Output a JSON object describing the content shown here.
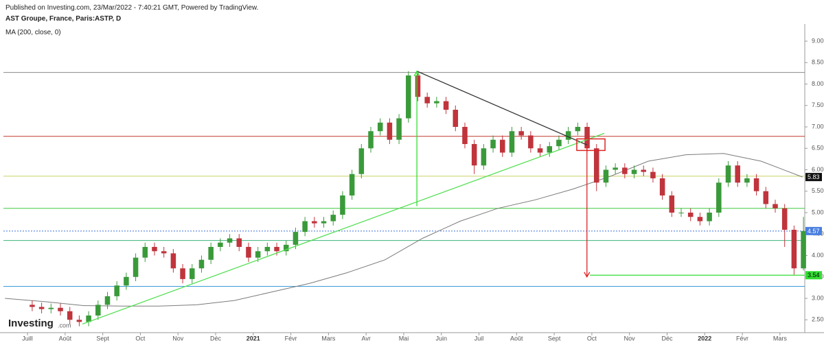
{
  "chart_data": {
    "type": "candlestick",
    "published": "Published on Investing.com, 23/Mar/2022 - 7:40:21 GMT, Powered by TradingView.",
    "title": "AST Groupe, France, Paris:ASTP, D",
    "indicator": "MA (200, close, 0)",
    "logo": "Investing",
    "logo_suffix": ".com",
    "xlim": [
      -0.64,
      20.66
    ],
    "ylim": [
      2.2,
      9.4
    ],
    "xticks": [
      {
        "value": 0,
        "label": "Juill"
      },
      {
        "value": 1,
        "label": "Août"
      },
      {
        "value": 2,
        "label": "Sept"
      },
      {
        "value": 3,
        "label": "Oct"
      },
      {
        "value": 4,
        "label": "Nov"
      },
      {
        "value": 5,
        "label": "Déc"
      },
      {
        "value": 6,
        "label": "2021"
      },
      {
        "value": 7,
        "label": "Févr"
      },
      {
        "value": 8,
        "label": "Mars"
      },
      {
        "value": 9,
        "label": "Avr"
      },
      {
        "value": 10,
        "label": "Mai"
      },
      {
        "value": 11,
        "label": "Juin"
      },
      {
        "value": 12,
        "label": "Juil"
      },
      {
        "value": 13,
        "label": "Août"
      },
      {
        "value": 14,
        "label": "Sept"
      },
      {
        "value": 15,
        "label": "Oct"
      },
      {
        "value": 16,
        "label": "Nov"
      },
      {
        "value": 17,
        "label": "Déc"
      },
      {
        "value": 18,
        "label": "2022"
      },
      {
        "value": 19,
        "label": "Févr"
      },
      {
        "value": 20,
        "label": "Mars"
      }
    ],
    "yticks": [
      {
        "value": 9,
        "label": "9.00"
      },
      {
        "value": 8.5,
        "label": "8.50"
      },
      {
        "value": 8,
        "label": "8.00"
      },
      {
        "value": 7.5,
        "label": "7.50"
      },
      {
        "value": 7,
        "label": "7.00"
      },
      {
        "value": 6.5,
        "label": "6.50"
      },
      {
        "value": 6,
        "label": "6.00"
      },
      {
        "value": 5.5,
        "label": "5.50"
      },
      {
        "value": 5,
        "label": "5.00"
      },
      {
        "value": 4.5,
        "label": "4.50"
      },
      {
        "value": 4,
        "label": "4.00"
      },
      {
        "value": 3.5,
        "label": "3.50"
      },
      {
        "value": 3,
        "label": "3.00"
      },
      {
        "value": 2.5,
        "label": "2.50"
      }
    ],
    "up_color": "#3a9a3a",
    "down_color": "#c0343c",
    "candles": {
      "x": [
        0.125,
        0.375,
        0.625,
        0.875,
        1.125,
        1.375,
        1.625,
        1.875,
        2.125,
        2.375,
        2.625,
        2.875,
        3.125,
        3.375,
        3.625,
        3.875,
        4.125,
        4.375,
        4.625,
        4.875,
        5.125,
        5.375,
        5.625,
        5.875,
        6.125,
        6.375,
        6.625,
        6.875,
        7.125,
        7.375,
        7.625,
        7.875,
        8.125,
        8.375,
        8.625,
        8.875,
        9.125,
        9.375,
        9.625,
        9.875,
        10.125,
        10.375,
        10.625,
        10.875,
        11.125,
        11.375,
        11.625,
        11.875,
        12.125,
        12.375,
        12.625,
        12.875,
        13.125,
        13.375,
        13.625,
        13.875,
        14.125,
        14.375,
        14.625,
        14.875,
        15.125,
        15.375,
        15.625,
        15.875,
        16.125,
        16.375,
        16.625,
        16.875,
        17.125,
        17.375,
        17.625,
        17.875,
        18.125,
        18.375,
        18.625,
        18.875,
        19.125,
        19.375,
        19.625,
        19.875,
        20.125,
        20.375,
        20.625
      ],
      "open": [
        2.85,
        2.8,
        2.75,
        2.78,
        2.7,
        2.5,
        2.45,
        2.6,
        2.85,
        3.05,
        3.3,
        3.5,
        3.95,
        4.2,
        4.1,
        4.05,
        3.7,
        3.45,
        3.7,
        3.9,
        4.2,
        4.3,
        4.4,
        4.2,
        3.95,
        4.1,
        4.2,
        4.1,
        4.25,
        4.55,
        4.8,
        4.75,
        4.8,
        4.95,
        5.4,
        5.9,
        6.5,
        6.9,
        7.1,
        6.7,
        7.2,
        8.2,
        7.7,
        7.55,
        7.6,
        7.4,
        7.0,
        6.6,
        6.1,
        6.5,
        6.7,
        6.4,
        6.9,
        6.8,
        6.5,
        6.4,
        6.55,
        6.7,
        6.9,
        7.0,
        6.5,
        5.7,
        6.0,
        6.05,
        5.9,
        6.0,
        5.95,
        5.8,
        5.4,
        5.0,
        5.0,
        4.9,
        4.8,
        5.0,
        5.7,
        6.1,
        5.7,
        5.8,
        5.5,
        5.2,
        5.1,
        4.6,
        3.7
      ],
      "high": [
        2.95,
        2.9,
        2.88,
        2.88,
        2.8,
        2.6,
        2.7,
        2.95,
        3.15,
        3.4,
        3.6,
        4.05,
        4.3,
        4.3,
        4.2,
        4.15,
        3.8,
        3.8,
        4.0,
        4.3,
        4.4,
        4.5,
        4.5,
        4.3,
        4.2,
        4.3,
        4.3,
        4.35,
        4.65,
        4.9,
        4.9,
        4.9,
        5.05,
        5.5,
        6.0,
        6.6,
        7.0,
        7.2,
        7.2,
        7.3,
        8.3,
        8.25,
        7.8,
        7.7,
        7.7,
        7.5,
        7.1,
        6.7,
        6.6,
        6.8,
        6.8,
        7.0,
        7.0,
        6.9,
        6.6,
        6.65,
        6.8,
        7.0,
        7.1,
        7.1,
        6.6,
        6.1,
        6.15,
        6.15,
        6.1,
        6.1,
        6.05,
        5.9,
        5.5,
        5.1,
        5.1,
        5.0,
        5.1,
        5.8,
        6.2,
        6.2,
        5.9,
        5.9,
        5.6,
        5.3,
        5.2,
        4.7,
        4.9
      ],
      "low": [
        2.7,
        2.65,
        2.65,
        2.6,
        2.4,
        2.35,
        2.35,
        2.5,
        2.75,
        2.95,
        3.2,
        3.4,
        3.85,
        4.0,
        3.95,
        3.6,
        3.35,
        3.35,
        3.6,
        3.8,
        4.1,
        4.2,
        4.1,
        3.85,
        3.85,
        4.0,
        4.0,
        4.0,
        4.15,
        4.45,
        4.65,
        4.65,
        4.7,
        4.85,
        5.3,
        5.8,
        6.4,
        6.8,
        6.6,
        6.6,
        7.1,
        7.6,
        7.45,
        7.45,
        7.3,
        6.9,
        6.5,
        5.9,
        6.0,
        6.4,
        6.3,
        6.3,
        6.7,
        6.4,
        6.3,
        6.3,
        6.45,
        6.6,
        6.8,
        6.4,
        5.5,
        5.6,
        5.9,
        5.8,
        5.8,
        5.85,
        5.7,
        5.3,
        4.9,
        4.9,
        4.8,
        4.7,
        4.7,
        4.9,
        5.6,
        5.6,
        5.6,
        5.4,
        5.1,
        5.0,
        4.2,
        3.55,
        3.65
      ],
      "close": [
        2.8,
        2.75,
        2.78,
        2.7,
        2.5,
        2.45,
        2.6,
        2.85,
        3.05,
        3.3,
        3.5,
        3.95,
        4.2,
        4.1,
        4.05,
        3.7,
        3.45,
        3.7,
        3.9,
        4.2,
        4.3,
        4.4,
        4.2,
        3.95,
        4.1,
        4.2,
        4.1,
        4.25,
        4.55,
        4.8,
        4.75,
        4.8,
        4.95,
        5.4,
        5.9,
        6.5,
        6.9,
        7.1,
        6.7,
        7.2,
        8.2,
        7.7,
        7.55,
        7.6,
        7.4,
        7.0,
        6.6,
        6.1,
        6.5,
        6.7,
        6.4,
        6.9,
        6.8,
        6.5,
        6.4,
        6.55,
        6.7,
        6.9,
        7.0,
        6.5,
        5.7,
        6.0,
        6.05,
        5.9,
        6.0,
        5.95,
        5.8,
        5.4,
        5.0,
        5.0,
        4.9,
        4.8,
        5.0,
        5.7,
        6.1,
        5.7,
        5.8,
        5.5,
        5.2,
        5.1,
        4.6,
        3.7,
        4.57
      ]
    },
    "ma": {
      "color": "#7a7a7a",
      "x": [
        -0.6,
        0.5,
        1.5,
        2.5,
        3.5,
        4.5,
        5.5,
        6.5,
        7.5,
        8.5,
        9.5,
        10.5,
        11.5,
        12.5,
        13.5,
        14.5,
        15.5,
        16.5,
        17.5,
        18.5,
        19.5,
        20.6
      ],
      "values": [
        3.0,
        2.92,
        2.83,
        2.82,
        2.82,
        2.85,
        2.95,
        3.15,
        3.35,
        3.6,
        3.9,
        4.4,
        4.8,
        5.1,
        5.3,
        5.55,
        5.85,
        6.2,
        6.35,
        6.38,
        6.2,
        5.83
      ]
    },
    "levels": [
      {
        "value": 8.27,
        "color": "#888888"
      },
      {
        "value": 6.78,
        "color": "#c0392b"
      },
      {
        "value": 5.85,
        "color": "#c8d060"
      },
      {
        "value": 5.1,
        "color": "#3cc83c"
      },
      {
        "value": 4.57,
        "color": "#3a6fd9",
        "style": "dotted"
      },
      {
        "value": 4.35,
        "color": "#3cb37a"
      },
      {
        "value": 3.28,
        "color": "#3a9ad9"
      }
    ],
    "drawings": [
      {
        "kind": "line",
        "color": "#333333",
        "points": [
          [
            10.35,
            8.3
          ],
          [
            14.87,
            6.58
          ]
        ]
      },
      {
        "kind": "line",
        "color": "#55e055",
        "points": [
          [
            1.46,
            2.4
          ],
          [
            15.33,
            6.85
          ]
        ]
      },
      {
        "kind": "arrow",
        "color": "#33dd33",
        "points": [
          [
            10.35,
            5.15
          ],
          [
            10.35,
            8.3
          ]
        ]
      },
      {
        "kind": "arrow",
        "color": "#dd2222",
        "points": [
          [
            14.87,
            6.55
          ],
          [
            14.87,
            3.5
          ]
        ]
      },
      {
        "kind": "line",
        "color": "#33dd33",
        "points": [
          [
            14.95,
            3.54
          ],
          [
            20.66,
            3.54
          ]
        ]
      },
      {
        "kind": "box",
        "color": "#dd2222",
        "points": [
          [
            14.6,
            6.72
          ],
          [
            15.35,
            6.45
          ]
        ]
      }
    ],
    "price_labels": [
      {
        "value": 5.83,
        "label": "5.83",
        "color": "#111111",
        "text_color": "#ffffff"
      },
      {
        "value": 4.57,
        "label": "4.57",
        "color": "#4a7fe0",
        "text_color": "#ffffff"
      },
      {
        "value": 3.54,
        "label": "3.54",
        "color": "#33dd33",
        "text_color": "#000000"
      }
    ]
  }
}
